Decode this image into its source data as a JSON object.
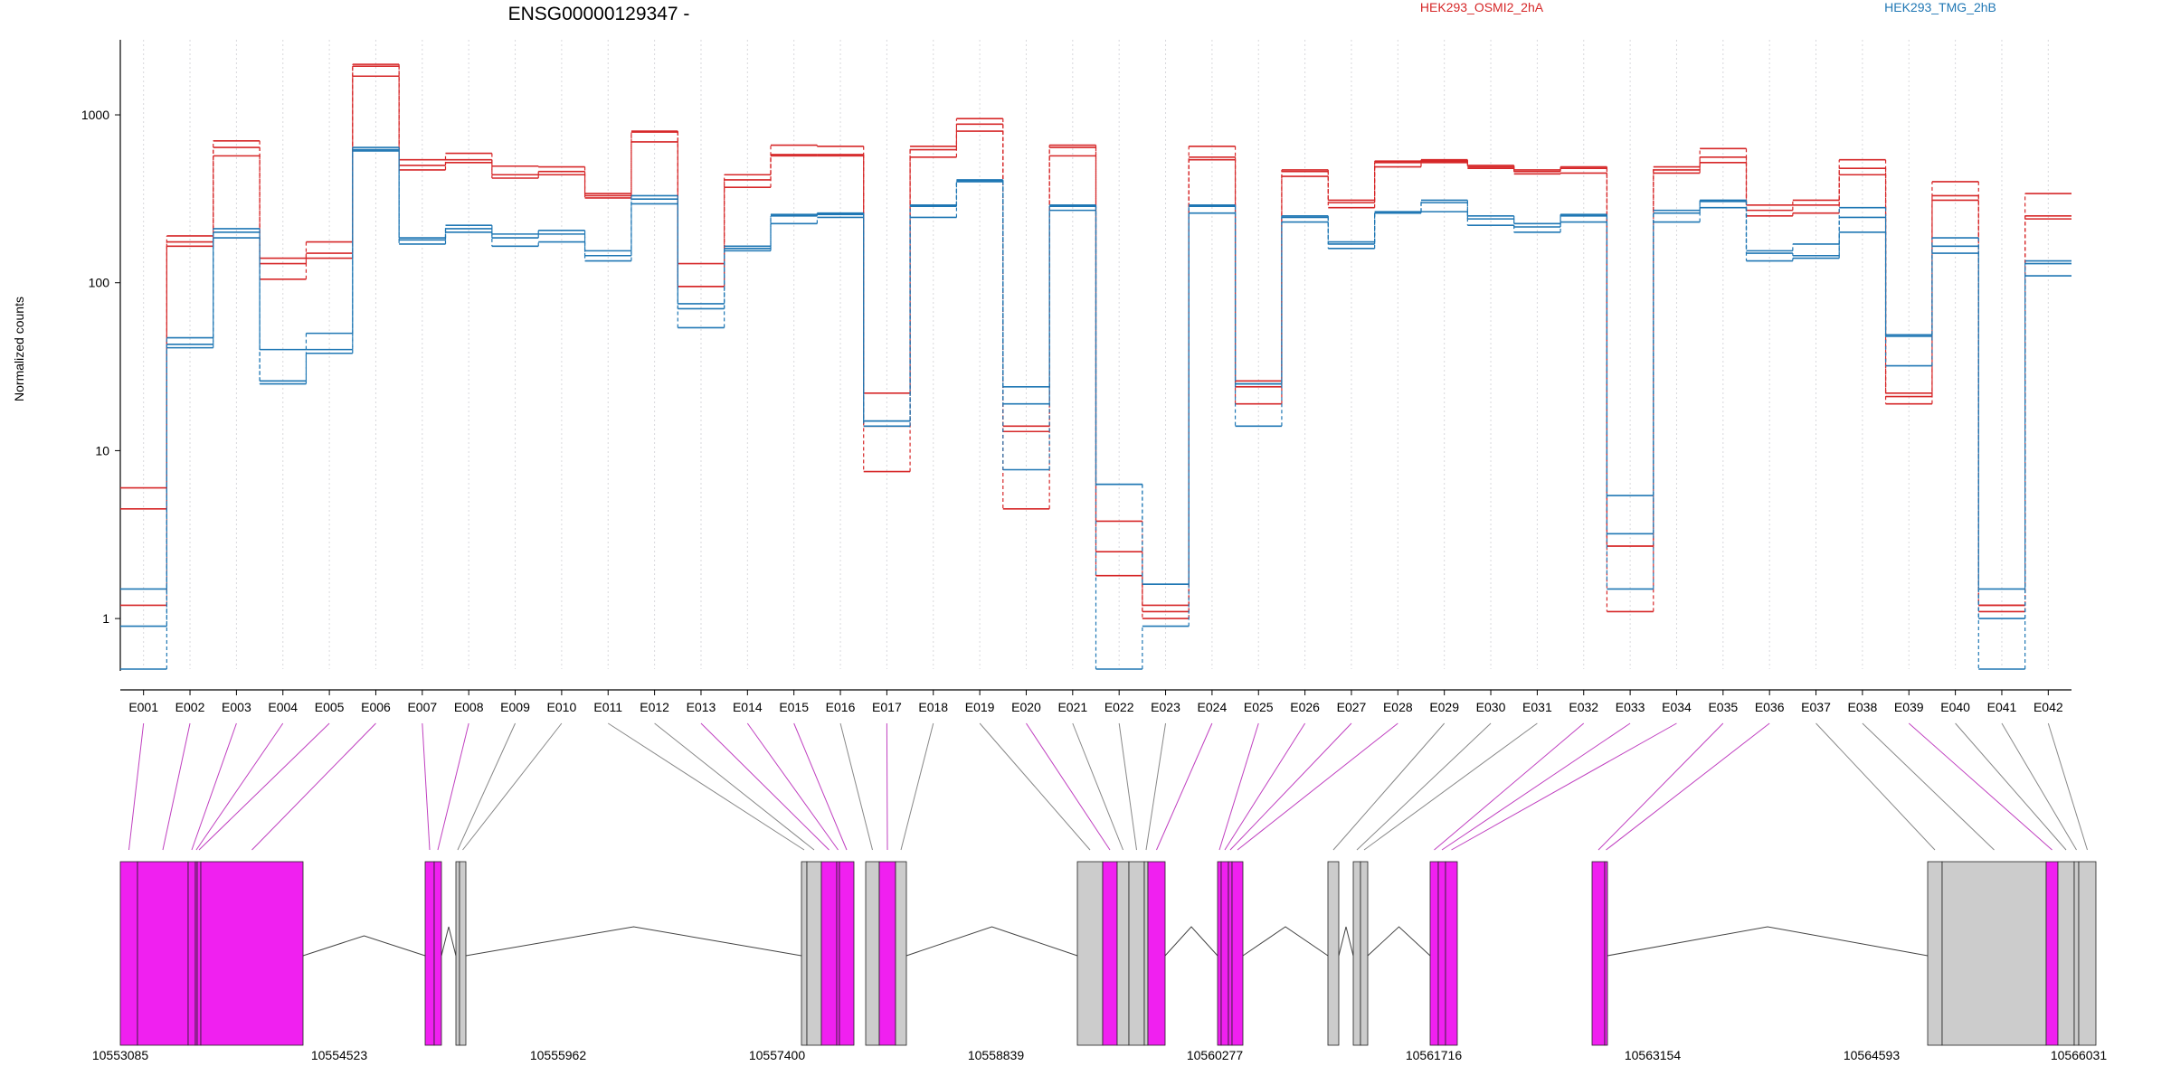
{
  "chart_data": {
    "type": "line",
    "title": "ENSG00000129347 -",
    "ylabel": "Normalized counts",
    "xlabel": "",
    "yscale": "log",
    "ylim": [
      0.5,
      2800
    ],
    "yticks": [
      1,
      10,
      100,
      1000
    ],
    "ytick_labels": [
      "1",
      "10",
      "100",
      "1000"
    ],
    "grid": "vertical dotted lines per exon",
    "legend_placement": "top",
    "categories": [
      "E001",
      "E002",
      "E003",
      "E004",
      "E005",
      "E006",
      "E007",
      "E008",
      "E009",
      "E010",
      "E011",
      "E012",
      "E013",
      "E014",
      "E015",
      "E016",
      "E017",
      "E018",
      "E019",
      "E020",
      "E021",
      "E022",
      "E023",
      "E024",
      "E025",
      "E026",
      "E027",
      "E028",
      "E029",
      "E030",
      "E031",
      "E032",
      "E033",
      "E034",
      "E035",
      "E036",
      "E037",
      "E038",
      "E039",
      "E040",
      "E041",
      "E042"
    ],
    "series": [
      {
        "name": "HEK293_OSMI2_2hA",
        "color": "#d62728",
        "values": [
          4.5,
          190,
          700,
          140,
          175,
          2000,
          540,
          590,
          495,
          490,
          340,
          800,
          130,
          440,
          660,
          650,
          22,
          650,
          950,
          14,
          660,
          3.8,
          1.2,
          650,
          26,
          470,
          310,
          530,
          540,
          500,
          470,
          490,
          2.7,
          490,
          630,
          290,
          310,
          540,
          22,
          400,
          1.2,
          340
        ]
      },
      {
        "name": "HEK293_OSMI2_2hA",
        "color": "#d62728",
        "values": [
          6.0,
          175,
          640,
          130,
          150,
          1950,
          500,
          540,
          440,
          460,
          330,
          790,
          95,
          410,
          580,
          580,
          14,
          620,
          880,
          13,
          640,
          2.5,
          1.1,
          560,
          24,
          460,
          300,
          520,
          530,
          490,
          460,
          480,
          2.7,
          470,
          560,
          270,
          290,
          480,
          21,
          330,
          1.1,
          250
        ]
      },
      {
        "name": "HEK293_OSMI2_2hA",
        "color": "#d62728",
        "values": [
          1.2,
          165,
          570,
          105,
          140,
          1700,
          470,
          520,
          420,
          440,
          320,
          690,
          95,
          370,
          570,
          570,
          7.5,
          560,
          800,
          4.5,
          570,
          1.8,
          1.0,
          540,
          19,
          430,
          280,
          490,
          520,
          480,
          445,
          450,
          1.1,
          450,
          520,
          250,
          260,
          440,
          19,
          310,
          1.2,
          240
        ]
      },
      {
        "name": "HEK293_TMG_2hB",
        "color": "#1f77b4",
        "values": [
          1.5,
          47,
          210,
          40,
          50,
          640,
          185,
          220,
          195,
          205,
          155,
          330,
          75,
          165,
          255,
          260,
          15,
          290,
          410,
          24,
          290,
          6.3,
          1.6,
          290,
          25,
          250,
          175,
          265,
          310,
          250,
          225,
          255,
          5.4,
          270,
          310,
          155,
          170,
          280,
          49,
          185,
          1.5,
          135
        ]
      },
      {
        "name": "HEK293_TMG_2hB",
        "color": "#1f77b4",
        "values": [
          0.9,
          43,
          200,
          26,
          40,
          620,
          180,
          210,
          185,
          195,
          145,
          315,
          70,
          160,
          250,
          255,
          15,
          285,
          405,
          19,
          285,
          6.3,
          1.6,
          285,
          25,
          245,
          170,
          262,
          300,
          240,
          215,
          250,
          3.2,
          260,
          305,
          150,
          145,
          245,
          48,
          165,
          1.0,
          130
        ]
      },
      {
        "name": "HEK293_TMG_2hB",
        "color": "#1f77b4",
        "values": [
          0.5,
          41,
          185,
          25,
          38,
          610,
          170,
          200,
          165,
          175,
          135,
          295,
          54,
          155,
          225,
          245,
          14,
          245,
          400,
          7.7,
          270,
          0.5,
          0.9,
          260,
          14,
          230,
          160,
          260,
          265,
          220,
          200,
          230,
          1.5,
          230,
          280,
          135,
          140,
          200,
          32,
          150,
          0.5,
          110
        ]
      }
    ],
    "annotations": {
      "genomic_coordinates": [
        "10553085",
        "10554523",
        "10555962",
        "10557400",
        "10558839",
        "10560277",
        "10561716",
        "10563154",
        "10564593",
        "10566031"
      ],
      "gene_model": "exon blocks with connecting intron lines; significant exons highlighted magenta (#f020f0), others grey (#cccccc)",
      "significant_exons": [
        "E001",
        "E002",
        "E003",
        "E004",
        "E005",
        "E006",
        "E007",
        "E008",
        "E013",
        "E014",
        "E015",
        "E017",
        "E020",
        "E024",
        "E025",
        "E026",
        "E027",
        "E028",
        "E032",
        "E033",
        "E034",
        "E035",
        "E036",
        "E039"
      ]
    }
  }
}
